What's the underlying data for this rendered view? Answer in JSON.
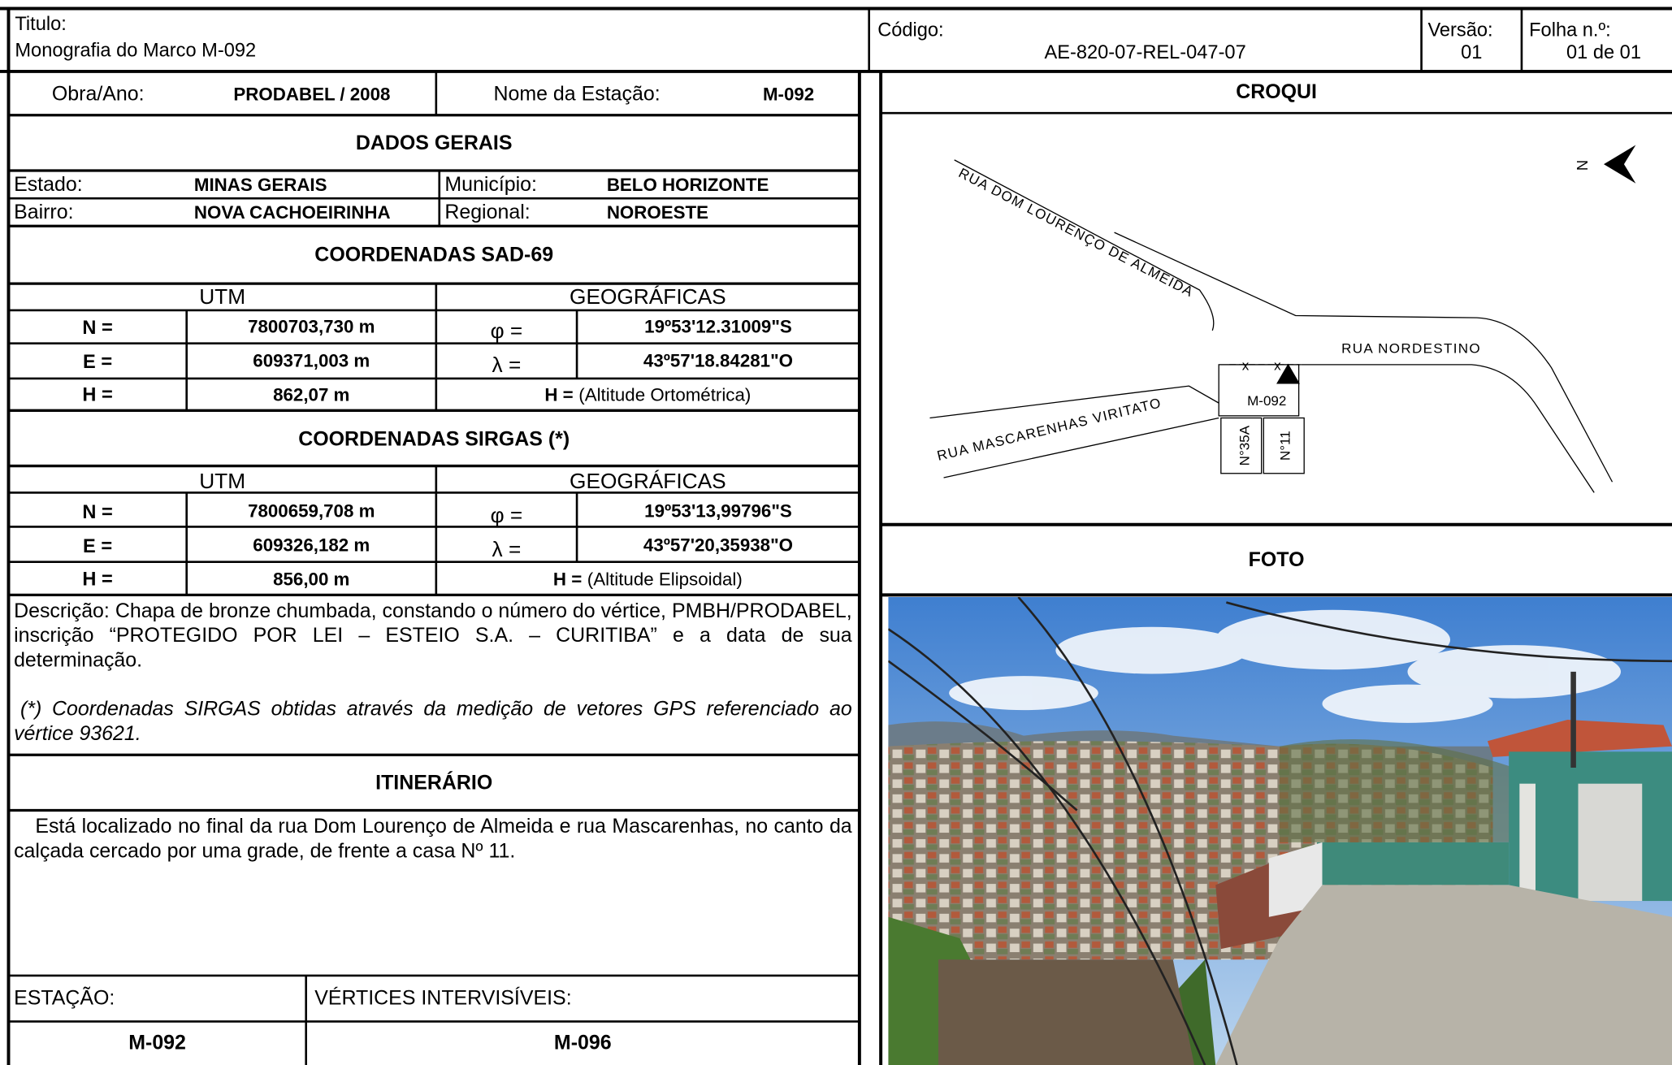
{
  "header": {
    "title_label": "Titulo:",
    "title": "Monografia do Marco M-092",
    "code_label": "Código:",
    "code": "AE-820-07-REL-047-07",
    "version_label": "Versão:",
    "version": "01",
    "sheet_label": "Folha n.º:",
    "sheet": "01 de 01"
  },
  "station_row": {
    "obra_label": "Obra/Ano:",
    "obra": "PRODABEL / 2008",
    "name_label": "Nome da Estação:",
    "name": "M-092"
  },
  "general": {
    "title": "DADOS GERAIS",
    "rows": [
      [
        "Estado:",
        "MINAS GERAIS",
        "Município:",
        "BELO HORIZONTE"
      ],
      [
        "Bairro:",
        "NOVA CACHOEIRINHA",
        "Regional:",
        "NOROESTE"
      ]
    ]
  },
  "sad69": {
    "title": "COORDENADAS SAD-69",
    "utm_label": "UTM",
    "geo_label": "GEOGRÁFICAS",
    "rows": [
      [
        "N =",
        "7800703,730 m",
        "φ =",
        "19º53'12.31009\"S"
      ],
      [
        "E =",
        "609371,003 m",
        "λ =",
        "43º57'18.84281\"O"
      ]
    ],
    "height": [
      "H =",
      "862,07 m",
      "H =",
      "(Altitude Ortométrica)"
    ]
  },
  "sirgas": {
    "title": "COORDENADAS SIRGAS (*)",
    "utm_label": "UTM",
    "geo_label": "GEOGRÁFICAS",
    "rows": [
      [
        "N =",
        "7800659,708 m",
        "φ =",
        "19º53'13,99796\"S"
      ],
      [
        "E =",
        "609326,182 m",
        "λ =",
        "43º57'20,35938\"O"
      ]
    ],
    "height": [
      "H =",
      "856,00 m",
      "H =",
      "(Altitude Elipsoidal)"
    ]
  },
  "description": {
    "text": "Descrição: Chapa de bronze chumbada, constando o número do vértice, PMBH/PRODABEL, inscrição “PROTEGIDO POR LEI – ESTEIO S.A. – CURITIBA” e a data de sua determinação.",
    "note": "(*) Coordenadas SIRGAS obtidas através da medição de vetores GPS  referenciado ao vértice  93621."
  },
  "itinerary": {
    "title": "ITINERÁRIO",
    "text": "Está localizado no final da  rua Dom Lourenço de Almeida e rua Mascarenhas, no canto da calçada cercado por uma grade, de frente a casa Nº 11."
  },
  "footer": {
    "station_label": "ESTAÇÃO:",
    "intervisible_label": "VÉRTICES INTERVISÍVEIS:",
    "station": "M-092",
    "intervisible": "M-096"
  },
  "croqui": {
    "title": "CROQUI",
    "north": "N",
    "streets": [
      "RUA DOM LOURENÇO DE ALMEIDA",
      "RUA NORDESTINO",
      "RUA MASCARENHAS VIRITATO"
    ],
    "marker": "M-092",
    "houses": [
      "N°35A",
      "N°11"
    ]
  },
  "photo": {
    "title": "FOTO"
  }
}
